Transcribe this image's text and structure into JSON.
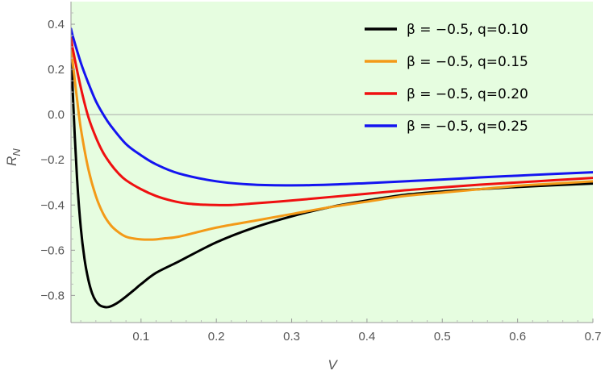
{
  "chart_data": {
    "type": "line",
    "title": "",
    "xlabel": "V",
    "ylabel_main": "R",
    "ylabel_sub": "N",
    "xlim": [
      0.007,
      0.7
    ],
    "ylim": [
      -0.92,
      0.5
    ],
    "xticks": [
      0.1,
      0.2,
      0.3,
      0.4,
      0.5,
      0.6,
      0.7
    ],
    "xtick_labels": [
      "0.1",
      "0.2",
      "0.3",
      "0.4",
      "0.5",
      "0.6",
      "0.7"
    ],
    "yticks": [
      0.4,
      0.2,
      0.0,
      -0.2,
      -0.4,
      -0.6,
      -0.8
    ],
    "ytick_labels": [
      "0.4",
      "0.2",
      "0.0",
      "−0.2",
      "−0.4",
      "−0.6",
      "−0.8"
    ],
    "zero_line": true,
    "legend_position": "top-right",
    "background": "#e6fde0",
    "series": [
      {
        "name": "β = −0.5, q=0.10",
        "color": "#000000",
        "x": [
          0.007,
          0.01,
          0.015,
          0.02,
          0.025,
          0.03,
          0.035,
          0.04,
          0.045,
          0.05,
          0.055,
          0.06,
          0.065,
          0.07,
          0.08,
          0.09,
          0.1,
          0.12,
          0.15,
          0.2,
          0.25,
          0.3,
          0.35,
          0.4,
          0.45,
          0.5,
          0.55,
          0.6,
          0.65,
          0.7
        ],
        "y": [
          0.33,
          0.05,
          -0.28,
          -0.5,
          -0.64,
          -0.73,
          -0.79,
          -0.825,
          -0.843,
          -0.85,
          -0.852,
          -0.848,
          -0.84,
          -0.83,
          -0.805,
          -0.778,
          -0.75,
          -0.7,
          -0.65,
          -0.565,
          -0.5,
          -0.45,
          -0.41,
          -0.38,
          -0.355,
          -0.34,
          -0.33,
          -0.32,
          -0.312,
          -0.305
        ]
      },
      {
        "name": "β = −0.5, q=0.15",
        "color": "#f39a18",
        "x": [
          0.007,
          0.01,
          0.015,
          0.02,
          0.03,
          0.04,
          0.05,
          0.06,
          0.07,
          0.08,
          0.09,
          0.1,
          0.11,
          0.12,
          0.13,
          0.15,
          0.2,
          0.25,
          0.3,
          0.35,
          0.4,
          0.45,
          0.5,
          0.55,
          0.6,
          0.65,
          0.7
        ],
        "y": [
          0.3,
          0.21,
          0.07,
          -0.06,
          -0.24,
          -0.36,
          -0.44,
          -0.49,
          -0.52,
          -0.54,
          -0.548,
          -0.552,
          -0.553,
          -0.552,
          -0.548,
          -0.54,
          -0.5,
          -0.47,
          -0.44,
          -0.41,
          -0.385,
          -0.36,
          -0.345,
          -0.33,
          -0.315,
          -0.305,
          -0.295
        ]
      },
      {
        "name": "β = −0.5, q=0.20",
        "color": "#ef1010",
        "x": [
          0.007,
          0.01,
          0.02,
          0.03,
          0.04,
          0.05,
          0.06,
          0.07,
          0.08,
          0.1,
          0.12,
          0.14,
          0.16,
          0.18,
          0.2,
          0.22,
          0.25,
          0.3,
          0.35,
          0.4,
          0.45,
          0.5,
          0.55,
          0.6,
          0.65,
          0.7
        ],
        "y": [
          0.34,
          0.28,
          0.12,
          -0.01,
          -0.1,
          -0.17,
          -0.22,
          -0.26,
          -0.29,
          -0.33,
          -0.36,
          -0.38,
          -0.393,
          -0.398,
          -0.4,
          -0.4,
          -0.393,
          -0.38,
          -0.365,
          -0.35,
          -0.335,
          -0.322,
          -0.31,
          -0.3,
          -0.29,
          -0.28
        ]
      },
      {
        "name": "β = −0.5, q=0.25",
        "color": "#1414f0",
        "x": [
          0.007,
          0.01,
          0.02,
          0.03,
          0.04,
          0.05,
          0.06,
          0.08,
          0.1,
          0.12,
          0.15,
          0.2,
          0.25,
          0.3,
          0.35,
          0.4,
          0.45,
          0.5,
          0.55,
          0.6,
          0.65,
          0.7
        ],
        "y": [
          0.38,
          0.34,
          0.23,
          0.14,
          0.06,
          0.0,
          -0.05,
          -0.13,
          -0.18,
          -0.22,
          -0.26,
          -0.295,
          -0.31,
          -0.313,
          -0.31,
          -0.303,
          -0.295,
          -0.287,
          -0.278,
          -0.27,
          -0.262,
          -0.255
        ]
      }
    ]
  }
}
